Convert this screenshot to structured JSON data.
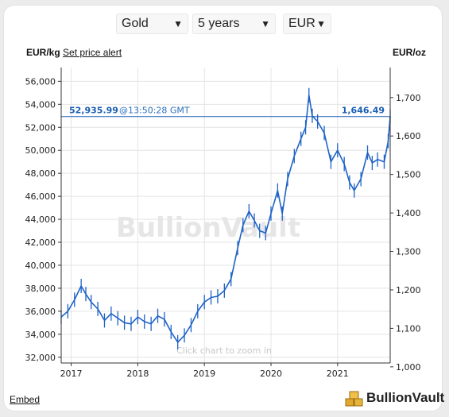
{
  "selectors": {
    "metal": "Gold",
    "period": "5 years",
    "currency": "EUR"
  },
  "header": {
    "left_unit": "EUR/kg",
    "alert_link": "Set price alert",
    "right_unit": "EUR/oz"
  },
  "current": {
    "price_kg": "52,935.99",
    "time": "@13:50:28 GMT",
    "price_oz": "1,646.49"
  },
  "watermark": "BullionVault",
  "zoom_hint": "Click chart to zoom in",
  "footer": {
    "embed": "Embed",
    "brand": "BullionVault"
  },
  "colors": {
    "series": "#1f63c6",
    "label": "#1a5fb4",
    "grid": "#e4e4e4",
    "axis": "#333333"
  },
  "chart_data": {
    "type": "line",
    "title": "",
    "xlabel": "",
    "ylabel_left": "EUR/kg",
    "ylabel_right": "EUR/oz",
    "ylim": [
      31500,
      57200
    ],
    "ylim_right": [
      1010,
      1778
    ],
    "x_ticks": [
      "2017",
      "2018",
      "2019",
      "2020",
      "2021"
    ],
    "y_ticks_left": [
      "32,000",
      "34,000",
      "36,000",
      "38,000",
      "40,000",
      "42,000",
      "44,000",
      "46,000",
      "48,000",
      "50,000",
      "52,000",
      "54,000",
      "56,000"
    ],
    "y_ticks_right": [
      "1,000",
      "1,100",
      "1,200",
      "1,300",
      "1,400",
      "1,500",
      "1,600",
      "1,700"
    ],
    "current_value": 52935.99,
    "x_range": [
      2016.85,
      2021.79
    ],
    "series": [
      {
        "values": [
          [
            2016.85,
            35500
          ],
          [
            2016.95,
            36000
          ],
          [
            2017.05,
            37000
          ],
          [
            2017.15,
            38200
          ],
          [
            2017.22,
            37500
          ],
          [
            2017.3,
            36800
          ],
          [
            2017.4,
            36200
          ],
          [
            2017.5,
            35200
          ],
          [
            2017.6,
            35800
          ],
          [
            2017.7,
            35400
          ],
          [
            2017.8,
            35000
          ],
          [
            2017.9,
            34900
          ],
          [
            2018.0,
            35500
          ],
          [
            2018.1,
            35100
          ],
          [
            2018.2,
            34900
          ],
          [
            2018.3,
            35600
          ],
          [
            2018.4,
            35300
          ],
          [
            2018.5,
            34200
          ],
          [
            2018.6,
            33300
          ],
          [
            2018.7,
            33900
          ],
          [
            2018.8,
            34800
          ],
          [
            2018.9,
            36000
          ],
          [
            2019.0,
            36800
          ],
          [
            2019.1,
            37200
          ],
          [
            2019.2,
            37300
          ],
          [
            2019.3,
            37800
          ],
          [
            2019.4,
            38800
          ],
          [
            2019.5,
            41500
          ],
          [
            2019.58,
            43500
          ],
          [
            2019.67,
            44700
          ],
          [
            2019.75,
            43900
          ],
          [
            2019.83,
            43000
          ],
          [
            2019.92,
            42800
          ],
          [
            2020.0,
            44500
          ],
          [
            2020.1,
            46500
          ],
          [
            2020.17,
            44500
          ],
          [
            2020.25,
            47500
          ],
          [
            2020.35,
            49500
          ],
          [
            2020.45,
            51000
          ],
          [
            2020.52,
            52000
          ],
          [
            2020.57,
            54800
          ],
          [
            2020.62,
            53000
          ],
          [
            2020.7,
            52500
          ],
          [
            2020.8,
            51500
          ],
          [
            2020.9,
            49000
          ],
          [
            2021.0,
            50000
          ],
          [
            2021.1,
            48800
          ],
          [
            2021.18,
            47200
          ],
          [
            2021.25,
            46500
          ],
          [
            2021.35,
            47500
          ],
          [
            2021.45,
            49800
          ],
          [
            2021.52,
            48900
          ],
          [
            2021.6,
            49200
          ],
          [
            2021.7,
            49000
          ],
          [
            2021.76,
            50800
          ],
          [
            2021.79,
            52936
          ]
        ]
      }
    ]
  }
}
